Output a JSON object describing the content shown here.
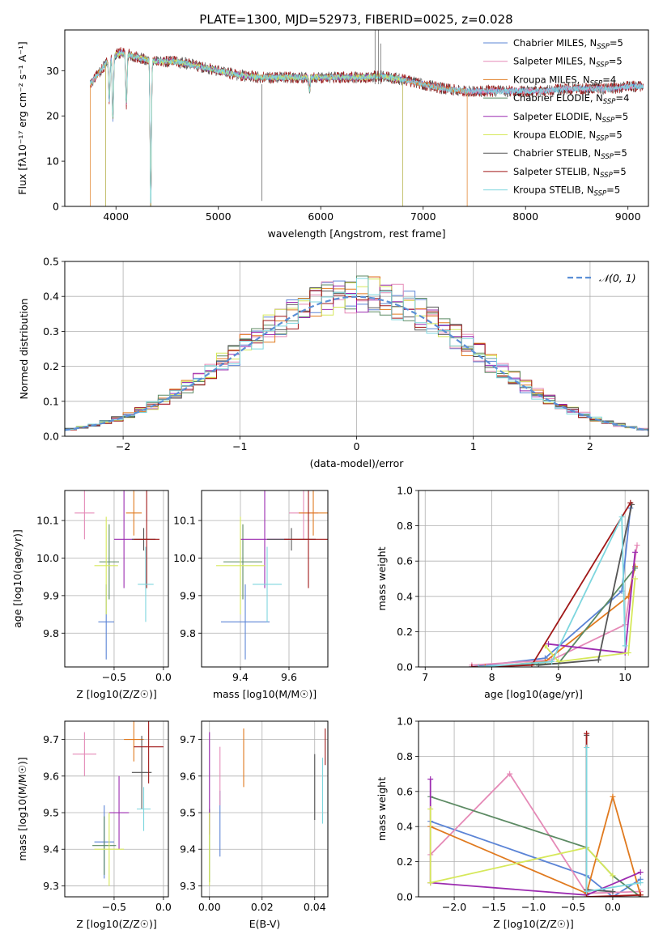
{
  "figure_title": "PLATE=1300, MJD=52973, FIBERID=0025, z=0.028",
  "colors": {
    "Chabrier MILES": "#5b84d6",
    "Salpeter MILES": "#e58ab7",
    "Kroupa MILES": "#e07a1f",
    "Chabrier ELODIE": "#5c8a63",
    "Salpeter ELODIE": "#9c2bb0",
    "Kroupa ELODIE": "#d6e85a",
    "Chabrier STELIB": "#555555",
    "Salpeter STELIB": "#a01818",
    "Kroupa STELIB": "#7dd6de",
    "normal_curve": "#5b8fd6"
  },
  "chart_data": [
    {
      "type": "line",
      "title": "PLATE=1300, MJD=52973, FIBERID=0025, z=0.028",
      "xlabel": "wavelength [Angstrom, rest frame]",
      "ylabel": "Flux [fλ10⁻¹⁷ erg cm⁻² s⁻¹ A⁻¹]",
      "xlim": [
        3500,
        9200
      ],
      "ylim": [
        0,
        39
      ],
      "xticks": [
        4000,
        5000,
        6000,
        7000,
        8000,
        9000
      ],
      "yticks": [
        0,
        10,
        20,
        30
      ],
      "grid": false,
      "legend_position": "top-right",
      "legend": [
        {
          "name": "Chabrier MILES",
          "nssp": "5"
        },
        {
          "name": "Salpeter MILES",
          "nssp": "5"
        },
        {
          "name": "Kroupa MILES",
          "nssp": "4"
        },
        {
          "name": "Chabrier ELODIE",
          "nssp": "4"
        },
        {
          "name": "Salpeter ELODIE",
          "nssp": "5"
        },
        {
          "name": "Kroupa ELODIE",
          "nssp": "5"
        },
        {
          "name": "Chabrier STELIB",
          "nssp": "5"
        },
        {
          "name": "Salpeter STELIB",
          "nssp": "5"
        },
        {
          "name": "Kroupa STELIB",
          "nssp": "5"
        }
      ],
      "continuum": [
        [
          3750,
          27
        ],
        [
          3850,
          30
        ],
        [
          3950,
          33
        ],
        [
          4050,
          34
        ],
        [
          4200,
          33
        ],
        [
          4400,
          32
        ],
        [
          4600,
          32
        ],
        [
          4800,
          31
        ],
        [
          5000,
          30
        ],
        [
          5200,
          29
        ],
        [
          5400,
          28.5
        ],
        [
          5600,
          28.5
        ],
        [
          5800,
          28.5
        ],
        [
          6000,
          28.5
        ],
        [
          6200,
          28.5
        ],
        [
          6400,
          28.5
        ],
        [
          6600,
          28.8
        ],
        [
          6800,
          28
        ],
        [
          7000,
          27
        ],
        [
          7200,
          26
        ],
        [
          7400,
          25.5
        ],
        [
          7600,
          25.5
        ],
        [
          7800,
          25.5
        ],
        [
          8000,
          25.5
        ],
        [
          8200,
          25.5
        ],
        [
          8400,
          26
        ],
        [
          8600,
          26
        ],
        [
          8800,
          26
        ],
        [
          9000,
          26.5
        ],
        [
          9150,
          26.5
        ]
      ],
      "absorption_dips": [
        {
          "x": 3935,
          "depth": 9
        },
        {
          "x": 3970,
          "depth": 14
        },
        {
          "x": 4102,
          "depth": 11
        },
        {
          "x": 4340,
          "depth": 33
        },
        {
          "x": 5890,
          "depth": 3
        }
      ],
      "range_edges": [
        {
          "series": "Kroupa MILES",
          "start": 3750,
          "end": 7430
        },
        {
          "series": "Chabrier ELODIE",
          "start": 3900,
          "end": 6800
        },
        {
          "series": "Salpeter ELODIE",
          "start": 3900,
          "end": 6800
        },
        {
          "series": "Kroupa ELODIE",
          "start": 3900,
          "end": 6800
        }
      ]
    },
    {
      "type": "histogram",
      "xlabel": "(data-model)/error",
      "ylabel": "Normed distribution",
      "xlim": [
        -2.5,
        2.5
      ],
      "ylim": [
        0,
        0.5
      ],
      "xticks": [
        -2,
        -1,
        0,
        1,
        2
      ],
      "yticks": [
        0.0,
        0.1,
        0.2,
        0.3,
        0.4,
        0.5
      ],
      "grid": true,
      "legend_position": "top-right",
      "legend_label": "𝒩(0, 1)",
      "bin_edges_start": -2.5,
      "bin_width": 0.1,
      "normal_curve": {
        "mean": 0,
        "sigma": 1
      }
    },
    {
      "type": "scatter",
      "xlabel": "Z [log10(Z/Z☉)]",
      "ylabel": "age  [log10(age/yr)]",
      "xlim": [
        -1.0,
        0.05
      ],
      "ylim": [
        9.71,
        10.18
      ],
      "xticks": [
        -0.5,
        0.0
      ],
      "yticks": [
        9.8,
        9.9,
        10.0,
        10.1
      ],
      "grid": true,
      "errorbars": [
        {
          "series": "Chabrier MILES",
          "x": -0.58,
          "xerr": 0.08,
          "y": 9.83,
          "yerr": 0.1
        },
        {
          "series": "Salpeter MILES",
          "x": -0.8,
          "xerr": 0.1,
          "y": 10.12,
          "yerr": 0.07
        },
        {
          "series": "Kroupa MILES",
          "x": -0.3,
          "xerr": 0.08,
          "y": 10.12,
          "yerr": 0.06
        },
        {
          "series": "Chabrier ELODIE",
          "x": -0.55,
          "xerr": 0.1,
          "y": 9.99,
          "yerr": 0.1
        },
        {
          "series": "Salpeter ELODIE",
          "x": -0.4,
          "xerr": 0.1,
          "y": 10.05,
          "yerr": 0.13
        },
        {
          "series": "Kroupa ELODIE",
          "x": -0.58,
          "xerr": 0.12,
          "y": 9.98,
          "yerr": 0.13
        },
        {
          "series": "Chabrier STELIB",
          "x": -0.2,
          "xerr": 0.12,
          "y": 10.05,
          "yerr": 0.03
        },
        {
          "series": "Salpeter STELIB",
          "x": -0.17,
          "xerr": 0.13,
          "y": 10.05,
          "yerr": 0.13
        },
        {
          "series": "Kroupa STELIB",
          "x": -0.18,
          "xerr": 0.08,
          "y": 9.93,
          "yerr": 0.1
        }
      ]
    },
    {
      "type": "scatter",
      "xlabel": "mass [log10(M/M☉)]",
      "ylabel": "",
      "xlim": [
        9.24,
        9.76
      ],
      "ylim": [
        9.71,
        10.18
      ],
      "xticks": [
        9.4,
        9.6
      ],
      "yticks": [
        9.8,
        9.9,
        10.0,
        10.1
      ],
      "grid": true,
      "errorbars": [
        {
          "series": "Chabrier MILES",
          "x": 9.42,
          "xerr": 0.1,
          "y": 9.83,
          "yerr": 0.1
        },
        {
          "series": "Salpeter MILES",
          "x": 9.66,
          "xerr": 0.06,
          "y": 10.12,
          "yerr": 0.07
        },
        {
          "series": "Kroupa MILES",
          "x": 9.7,
          "xerr": 0.06,
          "y": 10.12,
          "yerr": 0.06
        },
        {
          "series": "Chabrier ELODIE",
          "x": 9.41,
          "xerr": 0.08,
          "y": 9.99,
          "yerr": 0.1
        },
        {
          "series": "Salpeter ELODIE",
          "x": 9.5,
          "xerr": 0.1,
          "y": 10.05,
          "yerr": 0.13
        },
        {
          "series": "Kroupa ELODIE",
          "x": 9.4,
          "xerr": 0.1,
          "y": 9.98,
          "yerr": 0.13
        },
        {
          "series": "Chabrier STELIB",
          "x": 9.61,
          "xerr": 0.1,
          "y": 10.05,
          "yerr": 0.03
        },
        {
          "series": "Salpeter STELIB",
          "x": 9.68,
          "xerr": 0.1,
          "y": 10.05,
          "yerr": 0.13
        },
        {
          "series": "Kroupa STELIB",
          "x": 9.51,
          "xerr": 0.06,
          "y": 9.93,
          "yerr": 0.1
        }
      ]
    },
    {
      "type": "line",
      "xlabel": "age  [log10(age/yr)]",
      "ylabel": "mass weight",
      "xlim": [
        6.9,
        10.35
      ],
      "ylim": [
        0,
        1.0
      ],
      "xticks": [
        7,
        8,
        9,
        10
      ],
      "yticks": [
        0.0,
        0.2,
        0.4,
        0.6,
        0.8,
        1.0
      ],
      "grid": true,
      "series": [
        {
          "name": "Chabrier MILES",
          "points": [
            [
              7.7,
              0.0
            ],
            [
              8.8,
              0.05
            ],
            [
              9.95,
              0.43
            ],
            [
              10.08,
              0.9
            ]
          ]
        },
        {
          "name": "Salpeter MILES",
          "points": [
            [
              7.7,
              0.01
            ],
            [
              8.9,
              0.04
            ],
            [
              10.0,
              0.24
            ],
            [
              10.18,
              0.69
            ]
          ]
        },
        {
          "name": "Kroupa MILES",
          "points": [
            [
              7.9,
              0.0
            ],
            [
              8.8,
              0.03
            ],
            [
              10.05,
              0.4
            ],
            [
              10.15,
              0.57
            ]
          ]
        },
        {
          "name": "Chabrier ELODIE",
          "points": [
            [
              7.8,
              0.0
            ],
            [
              9.0,
              0.02
            ],
            [
              10.15,
              0.56
            ]
          ]
        },
        {
          "name": "Salpeter ELODIE",
          "points": [
            [
              8.85,
              0.13
            ],
            [
              10.0,
              0.08
            ],
            [
              10.15,
              0.65
            ]
          ]
        },
        {
          "name": "Kroupa ELODIE",
          "points": [
            [
              8.8,
              0.12
            ],
            [
              9.0,
              0.03
            ],
            [
              10.05,
              0.08
            ],
            [
              10.15,
              0.5
            ]
          ]
        },
        {
          "name": "Chabrier STELIB",
          "points": [
            [
              8.7,
              0.01
            ],
            [
              9.6,
              0.04
            ],
            [
              10.1,
              0.92
            ]
          ]
        },
        {
          "name": "Salpeter STELIB",
          "points": [
            [
              7.7,
              0.0
            ],
            [
              8.6,
              0.01
            ],
            [
              10.08,
              0.93
            ]
          ]
        },
        {
          "name": "Kroupa STELIB",
          "points": [
            [
              7.8,
              0.0
            ],
            [
              8.9,
              0.03
            ],
            [
              9.95,
              0.85
            ],
            [
              10.0,
              0.12
            ]
          ]
        }
      ]
    },
    {
      "type": "scatter",
      "xlabel": "Z [log10(Z/Z☉)]",
      "ylabel": "mass [log10(M/M☉)]",
      "xlim": [
        -1.0,
        0.05
      ],
      "ylim": [
        9.27,
        9.75
      ],
      "xticks": [
        -0.5,
        0.0
      ],
      "yticks": [
        9.3,
        9.4,
        9.5,
        9.6,
        9.7
      ],
      "grid": true,
      "errorbars": [
        {
          "series": "Chabrier MILES",
          "x": -0.6,
          "xerr": 0.1,
          "y": 9.42,
          "yerr": 0.1
        },
        {
          "series": "Salpeter MILES",
          "x": -0.8,
          "xerr": 0.12,
          "y": 9.66,
          "yerr": 0.06
        },
        {
          "series": "Kroupa MILES",
          "x": -0.3,
          "xerr": 0.1,
          "y": 9.7,
          "yerr": 0.06
        },
        {
          "series": "Chabrier ELODIE",
          "x": -0.6,
          "xerr": 0.12,
          "y": 9.41,
          "yerr": 0.08
        },
        {
          "series": "Salpeter ELODIE",
          "x": -0.45,
          "xerr": 0.1,
          "y": 9.5,
          "yerr": 0.1
        },
        {
          "series": "Kroupa ELODIE",
          "x": -0.55,
          "xerr": 0.15,
          "y": 9.4,
          "yerr": 0.1
        },
        {
          "series": "Chabrier STELIB",
          "x": -0.22,
          "xerr": 0.1,
          "y": 9.61,
          "yerr": 0.1
        },
        {
          "series": "Salpeter STELIB",
          "x": -0.15,
          "xerr": 0.15,
          "y": 9.68,
          "yerr": 0.1
        },
        {
          "series": "Kroupa STELIB",
          "x": -0.2,
          "xerr": 0.07,
          "y": 9.51,
          "yerr": 0.06
        }
      ]
    },
    {
      "type": "scatter",
      "xlabel": "E(B-V)",
      "ylabel": "",
      "xlim": [
        -0.003,
        0.045
      ],
      "ylim": [
        9.27,
        9.75
      ],
      "xticks": [
        0.0,
        0.02,
        0.04
      ],
      "yticks": [
        9.3,
        9.4,
        9.5,
        9.6,
        9.7
      ],
      "grid": true,
      "errorbars": [
        {
          "series": "Chabrier MILES",
          "x": 0.004,
          "xerr": 0,
          "y": 9.47,
          "yerr": 0.09
        },
        {
          "series": "Salpeter MILES",
          "x": 0.004,
          "xerr": 0,
          "y": 9.6,
          "yerr": 0.08
        },
        {
          "series": "Kroupa MILES",
          "x": 0.013,
          "xerr": 0,
          "y": 9.65,
          "yerr": 0.08
        },
        {
          "series": "Chabrier ELODIE",
          "x": 0.0,
          "xerr": 0,
          "y": 9.41,
          "yerr": 0.1
        },
        {
          "series": "Salpeter ELODIE",
          "x": 0.0,
          "xerr": 0,
          "y": 9.58,
          "yerr": 0.14
        },
        {
          "series": "Kroupa ELODIE",
          "x": 0.0,
          "xerr": 0,
          "y": 9.4,
          "yerr": 0.1
        },
        {
          "series": "Chabrier STELIB",
          "x": 0.04,
          "xerr": 0,
          "y": 9.57,
          "yerr": 0.09
        },
        {
          "series": "Salpeter STELIB",
          "x": 0.044,
          "xerr": 0,
          "y": 9.68,
          "yerr": 0.05
        },
        {
          "series": "Kroupa STELIB",
          "x": 0.043,
          "xerr": 0,
          "y": 9.56,
          "yerr": 0.09
        }
      ]
    },
    {
      "type": "line",
      "xlabel": "Z [log10(Z/Z☉)]",
      "ylabel": "mass weight",
      "xlim": [
        -2.45,
        0.45
      ],
      "ylim": [
        0,
        1.0
      ],
      "xticks": [
        -2.0,
        -1.5,
        -1.0,
        -0.5,
        0.0
      ],
      "yticks": [
        0.0,
        0.2,
        0.4,
        0.6,
        0.8,
        1.0
      ],
      "grid": true,
      "series": [
        {
          "name": "Chabrier MILES",
          "points": [
            [
              -2.3,
              0.43
            ],
            [
              -0.33,
              0.12
            ],
            [
              0.0,
              0.0
            ],
            [
              0.35,
              0.1
            ]
          ]
        },
        {
          "name": "Salpeter MILES",
          "points": [
            [
              -2.3,
              0.24
            ],
            [
              -1.3,
              0.7
            ],
            [
              -0.33,
              0.02
            ],
            [
              0.35,
              0.03
            ]
          ]
        },
        {
          "name": "Kroupa MILES",
          "points": [
            [
              -2.3,
              0.4
            ],
            [
              -0.33,
              0.02
            ],
            [
              0.0,
              0.57
            ],
            [
              0.35,
              0.01
            ]
          ]
        },
        {
          "name": "Chabrier ELODIE",
          "points": [
            [
              -2.3,
              0.57
            ],
            [
              -0.33,
              0.28
            ],
            [
              0.0,
              0.12
            ],
            [
              0.35,
              0.0
            ]
          ]
        },
        {
          "name": "Salpeter ELODIE",
          "points": [
            [
              -2.3,
              0.67
            ],
            [
              -2.3,
              0.08
            ],
            [
              -0.33,
              0.01
            ],
            [
              0.35,
              0.14
            ]
          ]
        },
        {
          "name": "Kroupa ELODIE",
          "points": [
            [
              -2.3,
              0.5
            ],
            [
              -2.3,
              0.08
            ],
            [
              -0.33,
              0.28
            ],
            [
              0.0,
              0.12
            ]
          ]
        },
        {
          "name": "Chabrier STELIB",
          "points": [
            [
              -0.33,
              0.92
            ],
            [
              -0.33,
              0.04
            ],
            [
              0.0,
              0.03
            ]
          ]
        },
        {
          "name": "Salpeter STELIB",
          "points": [
            [
              -0.33,
              0.93
            ],
            [
              -0.33,
              0.0
            ],
            [
              0.35,
              0.01
            ]
          ]
        },
        {
          "name": "Kroupa STELIB",
          "points": [
            [
              -0.33,
              0.85
            ],
            [
              -0.33,
              0.03
            ],
            [
              0.35,
              0.08
            ]
          ]
        }
      ]
    }
  ]
}
